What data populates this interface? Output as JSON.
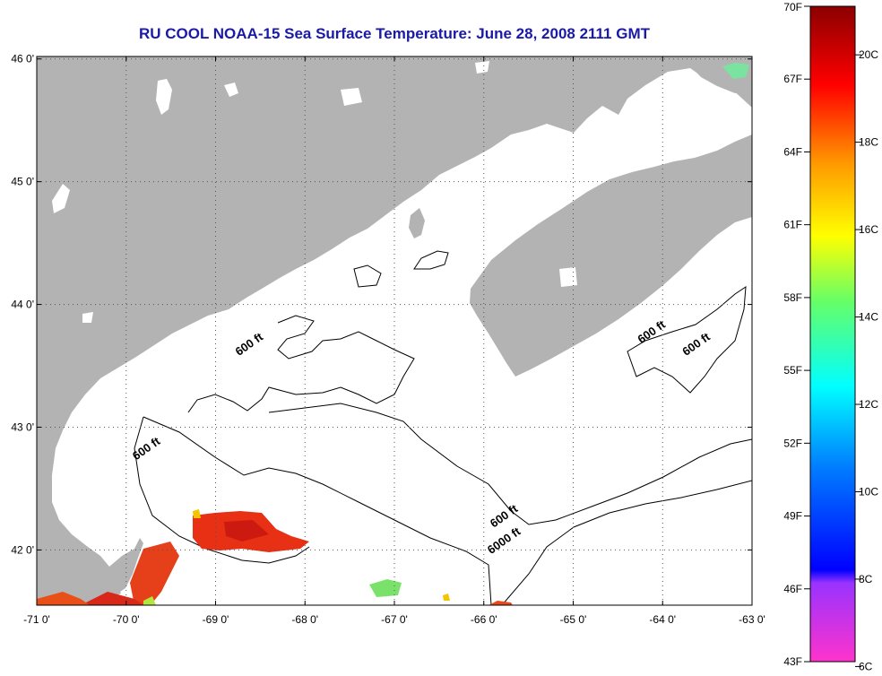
{
  "title": "RU COOL  NOAA-15  Sea Surface Temperature:  June 28, 2008 2111 GMT",
  "map": {
    "lat_labels": [
      {
        "lat": 46,
        "text": "46 0'"
      },
      {
        "lat": 45,
        "text": "45 0'"
      },
      {
        "lat": 44,
        "text": "44 0'"
      },
      {
        "lat": 43,
        "text": "43 0'"
      },
      {
        "lat": 42,
        "text": "42 0'"
      }
    ],
    "lon_labels": [
      {
        "lon": -71,
        "text": "-71 0'"
      },
      {
        "lon": -70,
        "text": "-70 0'"
      },
      {
        "lon": -69,
        "text": "-69 0'"
      },
      {
        "lon": -68,
        "text": "-68 0'"
      },
      {
        "lon": -67,
        "text": "-67 0'"
      },
      {
        "lon": -66,
        "text": "-66 0'"
      },
      {
        "lon": -65,
        "text": "-65 0'"
      },
      {
        "lon": -64,
        "text": "-64 0'"
      },
      {
        "lon": -63,
        "text": "-63 0'"
      }
    ],
    "contour_labels": [
      {
        "text": "600 ft",
        "lon": -68.6,
        "lat": 43.65
      },
      {
        "text": "600 ft",
        "lon": -69.75,
        "lat": 42.8
      },
      {
        "text": "600 ft",
        "lon": -64.1,
        "lat": 43.75
      },
      {
        "text": "600 ft",
        "lon": -63.6,
        "lat": 43.65
      },
      {
        "text": "600 ft",
        "lon": -65.75,
        "lat": 42.25
      },
      {
        "text": "6000 ft",
        "lon": -65.75,
        "lat": 42.05
      }
    ],
    "land_color": "#b3b3b3"
  },
  "colorbar": {
    "fahrenheit": [
      {
        "t": 70,
        "text": "70F"
      },
      {
        "t": 67,
        "text": "67F"
      },
      {
        "t": 64,
        "text": "64F"
      },
      {
        "t": 61,
        "text": "61F"
      },
      {
        "t": 58,
        "text": "58F"
      },
      {
        "t": 55,
        "text": "55F"
      },
      {
        "t": 52,
        "text": "52F"
      },
      {
        "t": 49,
        "text": "49F"
      },
      {
        "t": 46,
        "text": "46F"
      },
      {
        "t": 43,
        "text": "43F"
      }
    ],
    "celsius": [
      {
        "t": 20,
        "text": "20C"
      },
      {
        "t": 18,
        "text": "18C"
      },
      {
        "t": 16,
        "text": "16C"
      },
      {
        "t": 14,
        "text": "14C"
      },
      {
        "t": 12,
        "text": "12C"
      },
      {
        "t": 10,
        "text": "10C"
      },
      {
        "t": 8,
        "text": "8C"
      },
      {
        "t": 6,
        "text": "6C"
      }
    ]
  }
}
